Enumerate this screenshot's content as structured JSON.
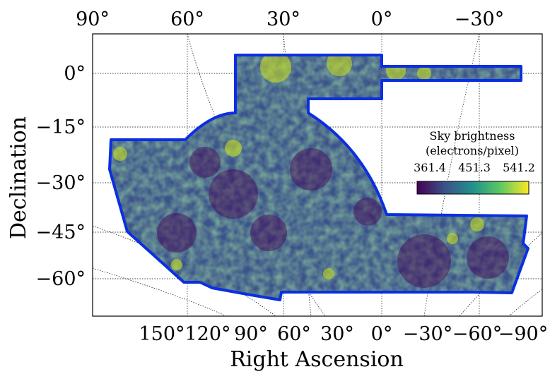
{
  "chart_data": {
    "type": "heatmap",
    "projection": "sky map, tilted equatorial graticule",
    "xlabel": "Right Ascension",
    "ylabel": "Declination",
    "top_ra_ticks": [
      "90°",
      "60°",
      "30°",
      "0°",
      "−30°"
    ],
    "bottom_ra_ticks": [
      "150°",
      "120°",
      "90°",
      "60°",
      "30°",
      "0°",
      "−30°",
      "−60°",
      "−90°"
    ],
    "dec_ticks": [
      "0°",
      "−15°",
      "−30°",
      "−45°",
      "−60°"
    ],
    "grid": true,
    "footprint_outline_color": "#0b2fe0",
    "colormap": "viridis",
    "colorbar": {
      "title_line1": "Sky brightness",
      "title_line2": "(electrons/pixel)",
      "ticks": [
        "361.4",
        "451.3",
        "541.2"
      ],
      "min": 361.4,
      "max": 541.2,
      "placement": "right, middle"
    }
  }
}
